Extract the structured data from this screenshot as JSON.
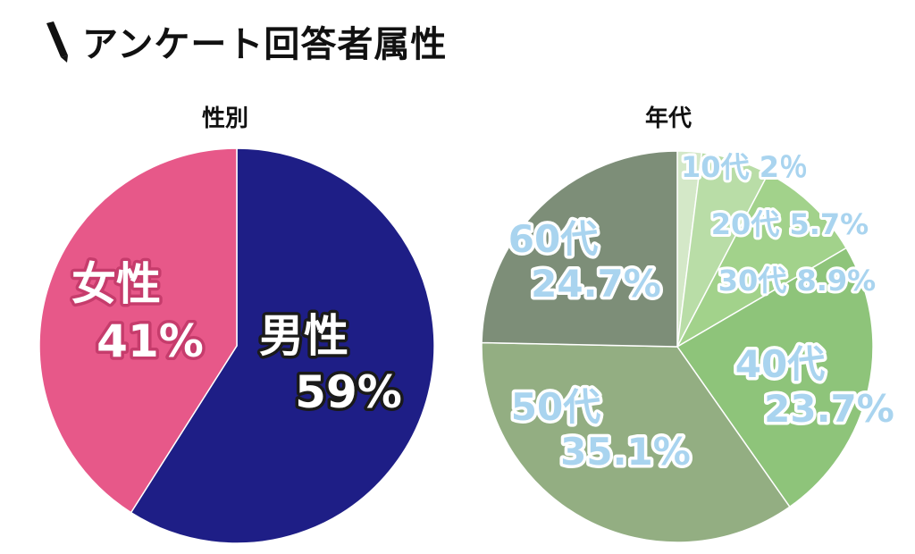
{
  "title": "アンケート回答者属性",
  "icon": "pen-icon",
  "colors": {
    "female": "#e75889",
    "male": "#1e1e86",
    "age": [
      "#d4e8c8",
      "#b9dda7",
      "#a2d28b",
      "#8ec47a",
      "#93ae82",
      "#7d8e78"
    ],
    "age_label_fill": "#a9d4ef"
  },
  "chart_data": [
    {
      "type": "pie",
      "title": "性別",
      "categories": [
        "男性",
        "女性"
      ],
      "values": [
        59,
        41
      ],
      "labels": [
        "59%",
        "41%"
      ]
    },
    {
      "type": "pie",
      "title": "年代",
      "categories": [
        "10代",
        "20代",
        "30代",
        "40代",
        "50代",
        "60代"
      ],
      "values": [
        2,
        5.7,
        8.9,
        23.7,
        35.1,
        24.7
      ],
      "labels": [
        "2％",
        "5.7%",
        "8.9%",
        "23.7%",
        "35.1%",
        "24.7%"
      ]
    }
  ]
}
